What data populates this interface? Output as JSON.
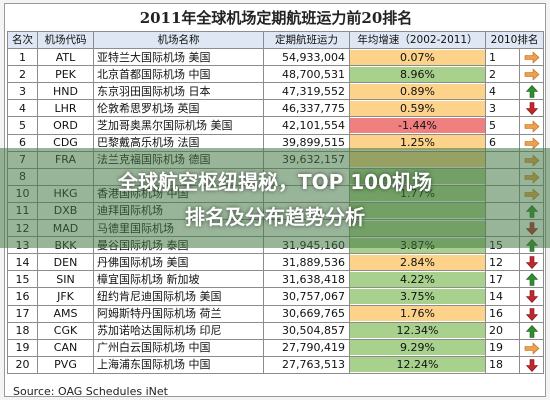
{
  "title": "2011年全球机场定期航班运力前20排名",
  "headers": [
    "名次",
    "机场代码",
    "机场名称",
    "定期航班运力",
    "年均增速（2002-2011）",
    "2010排名",
    ""
  ],
  "colors": {
    "positive": "#a8d18d",
    "negative": "#f07f7f",
    "neutral": "#fdd28a",
    "up": "#2f8f2f",
    "down": "#c0282d",
    "flat": "#f0a04b"
  },
  "rows": [
    {
      "rank": "1",
      "code": "ATL",
      "name": "亚特兰大国际机场 美国",
      "capacity": "54,933,004",
      "growth": "0.07%",
      "growth_sign": "neutral",
      "rank2010": "1",
      "trend": "right-arrow-icon"
    },
    {
      "rank": "2",
      "code": "PEK",
      "name": "北京首都国际机场 中国",
      "capacity": "48,700,531",
      "growth": "8.96%",
      "growth_sign": "positive",
      "rank2010": "2",
      "trend": "right-arrow-icon"
    },
    {
      "rank": "3",
      "code": "HND",
      "name": "东京羽田国际机场 日本",
      "capacity": "47,319,552",
      "growth": "0.89%",
      "growth_sign": "neutral",
      "rank2010": "4",
      "trend": "up-arrow-icon"
    },
    {
      "rank": "4",
      "code": "LHR",
      "name": "伦敦希思罗机场 英国",
      "capacity": "46,337,775",
      "growth": "0.59%",
      "growth_sign": "neutral",
      "rank2010": "3",
      "trend": "down-arrow-icon"
    },
    {
      "rank": "5",
      "code": "ORD",
      "name": "芝加哥奥黑尔国际机场 美国",
      "capacity": "42,101,554",
      "growth": "-1.44%",
      "growth_sign": "negative",
      "rank2010": "5",
      "trend": "right-arrow-icon"
    },
    {
      "rank": "6",
      "code": "CDG",
      "name": "巴黎戴高乐机场 法国",
      "capacity": "39,899,515",
      "growth": "1.25%",
      "growth_sign": "neutral",
      "rank2010": "6",
      "trend": "right-arrow-icon"
    },
    {
      "rank": "7",
      "code": "FRA",
      "name": "法兰克福国际机场 德国",
      "capacity": "39,632,157",
      "growth": "",
      "growth_sign": "neutral",
      "rank2010": "",
      "trend": "right-arrow-icon"
    },
    {
      "rank": "8",
      "code": "",
      "name": "",
      "capacity": "",
      "growth": "",
      "growth_sign": "positive",
      "rank2010": "",
      "trend": "right-arrow-icon"
    },
    {
      "rank": "10",
      "code": "HKG",
      "name": "香港国际机场 中国",
      "capacity": "",
      "growth": "1.77%",
      "growth_sign": "positive",
      "rank2010": "",
      "trend": "right-arrow-icon"
    },
    {
      "rank": "11",
      "code": "DXB",
      "name": "迪拜国际机场",
      "capacity": "",
      "growth": "",
      "growth_sign": "positive",
      "rank2010": "",
      "trend": "up-arrow-icon"
    },
    {
      "rank": "12",
      "code": "MAD",
      "name": "马德里国际机场",
      "capacity": "",
      "growth": "",
      "growth_sign": "positive",
      "rank2010": "",
      "trend": "down-arrow-icon"
    },
    {
      "rank": "13",
      "code": "BKK",
      "name": "曼谷国际机场 泰国",
      "capacity": "31,945,160",
      "growth": "3.87%",
      "growth_sign": "positive",
      "rank2010": "15",
      "trend": "up-arrow-icon"
    },
    {
      "rank": "14",
      "code": "DEN",
      "name": "丹佛国际机场 美国",
      "capacity": "31,889,536",
      "growth": "2.84%",
      "growth_sign": "neutral",
      "rank2010": "12",
      "trend": "down-arrow-icon"
    },
    {
      "rank": "15",
      "code": "SIN",
      "name": "樟宜国际机场 新加坡",
      "capacity": "31,638,418",
      "growth": "4.22%",
      "growth_sign": "positive",
      "rank2010": "17",
      "trend": "up-arrow-icon"
    },
    {
      "rank": "16",
      "code": "JFK",
      "name": "纽约肯尼迪国际机场 美国",
      "capacity": "30,757,067",
      "growth": "3.75%",
      "growth_sign": "positive",
      "rank2010": "14",
      "trend": "down-arrow-icon"
    },
    {
      "rank": "17",
      "code": "AMS",
      "name": "阿姆斯特丹国际机场 荷兰",
      "capacity": "30,669,765",
      "growth": "1.76%",
      "growth_sign": "neutral",
      "rank2010": "16",
      "trend": "down-arrow-icon"
    },
    {
      "rank": "18",
      "code": "CGK",
      "name": "苏加诺哈达国际机场 印尼",
      "capacity": "30,504,857",
      "growth": "12.34%",
      "growth_sign": "positive",
      "rank2010": "20",
      "trend": "up-arrow-icon"
    },
    {
      "rank": "19",
      "code": "CAN",
      "name": "广州白云国际机场 中国",
      "capacity": "27,790,419",
      "growth": "9.29%",
      "growth_sign": "positive",
      "rank2010": "19",
      "trend": "right-arrow-icon"
    },
    {
      "rank": "20",
      "code": "PVG",
      "name": "上海浦东国际机场 中国",
      "capacity": "27,763,513",
      "growth": "12.24%",
      "growth_sign": "positive",
      "rank2010": "18",
      "trend": "down-arrow-icon"
    }
  ],
  "source": "Source: OAG Schedules iNet",
  "banner": {
    "line1": "全球航空枢纽揭秘，TOP 100机场",
    "line2": "排名及分布趋势分析"
  }
}
